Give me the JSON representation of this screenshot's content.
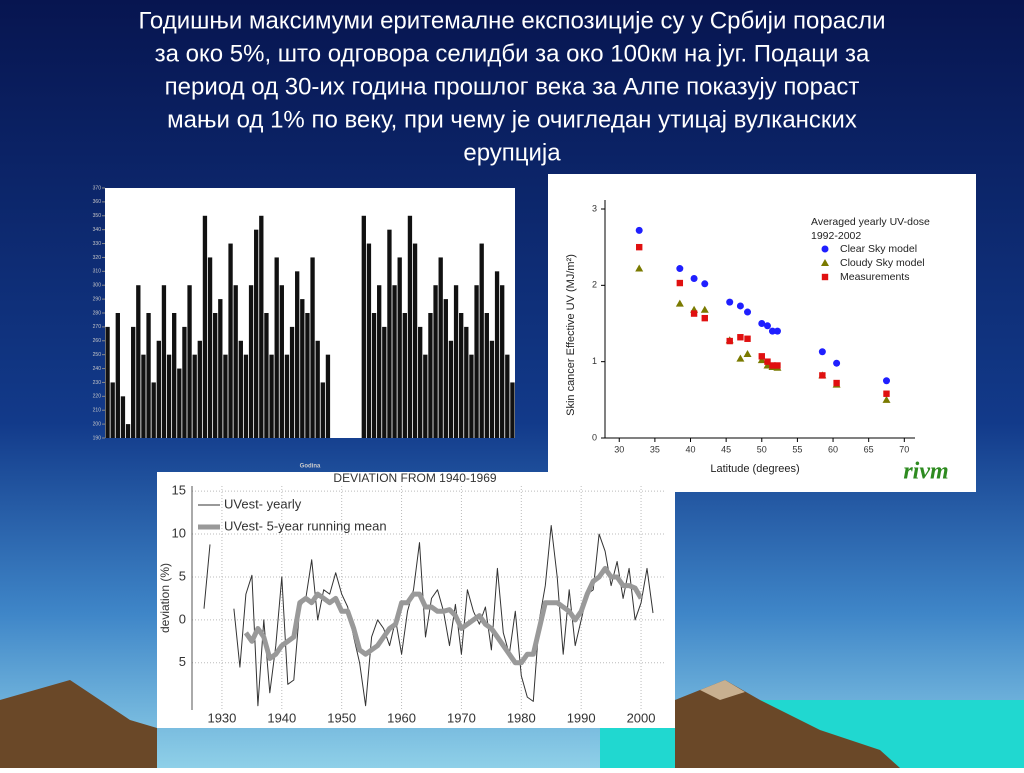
{
  "slide_title_lines": [
    "Годишњи максимуми еритемалне експозиције су у Србији порасли",
    "за око 5%, што одговора селидби за око 100км  на југ. Подаци за",
    "период од 30-их година прошлог века за Алпе показују пораст",
    "мањи од 1% по веку, при чему је очигледан утицај вулканских",
    "ерупција"
  ],
  "chart_data": [
    {
      "type": "bar",
      "xlabel": "Godina",
      "color": "#111111",
      "ylim": [
        190,
        370
      ],
      "yticks": [
        190,
        200,
        210,
        220,
        230,
        240,
        250,
        260,
        270,
        280,
        290,
        300,
        310,
        320,
        330,
        340,
        350,
        360,
        370
      ],
      "values": [
        270,
        230,
        280,
        220,
        200,
        270,
        300,
        250,
        280,
        230,
        260,
        300,
        250,
        280,
        240,
        270,
        300,
        250,
        260,
        350,
        320,
        280,
        290,
        250,
        330,
        300,
        260,
        250,
        300,
        340,
        350,
        280,
        250,
        320,
        300,
        250,
        270,
        310,
        290,
        280,
        320,
        260,
        230,
        250,
        null,
        null,
        null,
        null,
        null,
        null,
        350,
        330,
        280,
        300,
        270,
        340,
        300,
        320,
        280,
        350,
        330,
        270,
        250,
        280,
        300,
        320,
        290,
        260,
        300,
        280,
        270,
        250,
        300,
        330,
        280,
        260,
        310,
        300,
        250,
        230
      ]
    },
    {
      "type": "scatter",
      "legend_title_lines": [
        "Averaged yearly UV-dose",
        "1992-2002"
      ],
      "xlabel": "Latitude (degrees)",
      "ylabel": "Skin cancer Effective UV (MJ/m²)",
      "logo": "rivm",
      "xlim": [
        28,
        71.5
      ],
      "ylim": [
        0,
        3
      ],
      "xticks": [
        30,
        35,
        40,
        45,
        50,
        55,
        60,
        65,
        70
      ],
      "yticks": [
        0,
        1,
        2,
        3
      ],
      "series": [
        {
          "name": "Clear Sky model",
          "color": "#1f1fff",
          "marker": "circle",
          "x": [
            32.8,
            38.5,
            40.5,
            42,
            45.5,
            47,
            48,
            50,
            50.8,
            51.5,
            52.2,
            58.5,
            60.5,
            67.5
          ],
          "values": [
            2.72,
            2.22,
            2.09,
            2.02,
            1.78,
            1.73,
            1.65,
            1.5,
            1.47,
            1.4,
            1.4,
            1.13,
            0.98,
            0.75
          ]
        },
        {
          "name": "Cloudy Sky model",
          "color": "#7a7a00",
          "marker": "triangle",
          "x": [
            32.8,
            38.5,
            40.5,
            42,
            45.5,
            47,
            48,
            50,
            50.8,
            51.5,
            52.2,
            58.5,
            60.5,
            67.5
          ],
          "values": [
            2.22,
            1.76,
            1.68,
            1.68,
            1.28,
            1.04,
            1.1,
            1.02,
            0.95,
            0.93,
            0.92,
            0.82,
            0.7,
            0.5
          ]
        },
        {
          "name": "Measurements",
          "color": "#e01010",
          "marker": "square",
          "x": [
            32.8,
            38.5,
            40.5,
            42,
            45.5,
            47,
            48,
            50,
            50.8,
            51.5,
            52.2,
            58.5,
            60.5,
            67.5
          ],
          "values": [
            2.5,
            2.03,
            1.63,
            1.57,
            1.27,
            1.32,
            1.3,
            1.07,
            1.0,
            0.95,
            0.95,
            0.82,
            0.72,
            0.58
          ]
        }
      ]
    },
    {
      "type": "line",
      "title": "DEVIATION FROM 1940-1969",
      "ylabel": "deviation (%)",
      "grid": true,
      "xlim": [
        1925,
        2004
      ],
      "ylim": [
        -10.5,
        15.6
      ],
      "xticks": [
        1930,
        1940,
        1950,
        1960,
        1970,
        1980,
        1990,
        2000
      ],
      "yticks": [
        15,
        10,
        5,
        0,
        {
          "value": -5,
          "label": "5"
        }
      ],
      "series": [
        {
          "name": "UVest- yearly",
          "color": "#333333",
          "width": 1,
          "x": [
            1927,
            1928,
            1929,
            1930,
            1931,
            1932,
            1933,
            1934,
            1935,
            1936,
            1937,
            1938,
            1939,
            1940,
            1941,
            1942,
            1943,
            1944,
            1945,
            1946,
            1947,
            1948,
            1949,
            1950,
            1951,
            1952,
            1953,
            1954,
            1955,
            1956,
            1957,
            1958,
            1959,
            1960,
            1961,
            1962,
            1963,
            1964,
            1965,
            1966,
            1967,
            1968,
            1969,
            1970,
            1971,
            1972,
            1973,
            1974,
            1975,
            1976,
            1977,
            1978,
            1979,
            1980,
            1981,
            1982,
            1983,
            1984,
            1985,
            1986,
            1987,
            1988,
            1989,
            1990,
            1991,
            1992,
            1993,
            1994,
            1995,
            1996,
            1997,
            1998,
            1999,
            2000,
            2001,
            2002
          ],
          "values": [
            1.3,
            8.8,
            null,
            null,
            null,
            1.3,
            -5.5,
            3,
            5.2,
            -10,
            0,
            -8.5,
            -3,
            5,
            -7.5,
            -7,
            1.5,
            2.5,
            7,
            0,
            3.5,
            3,
            5.5,
            3,
            1.5,
            -2,
            -5,
            -10,
            -2,
            0,
            -1,
            -3,
            0,
            -4,
            1,
            3.5,
            9,
            -2,
            2.5,
            3.5,
            1,
            -3,
            1.8,
            -4,
            3.5,
            1,
            -0.5,
            1.5,
            -3.5,
            6,
            -1.5,
            -4,
            1,
            -6.5,
            -9,
            -9.5,
            0,
            4,
            11,
            5,
            -4,
            3.5,
            -3,
            0,
            3,
            3.5,
            10,
            8,
            4,
            6.8,
            2.5,
            6,
            0,
            2,
            6,
            0.8
          ]
        },
        {
          "name": "UVest- 5-year running mean",
          "color": "#999999",
          "width": 5,
          "x": [
            1934,
            1935,
            1936,
            1937,
            1938,
            1939,
            1940,
            1941,
            1942,
            1943,
            1944,
            1945,
            1946,
            1947,
            1948,
            1949,
            1950,
            1951,
            1952,
            1953,
            1954,
            1955,
            1956,
            1957,
            1958,
            1959,
            1960,
            1961,
            1962,
            1963,
            1964,
            1965,
            1966,
            1967,
            1968,
            1969,
            1970,
            1971,
            1972,
            1973,
            1974,
            1975,
            1976,
            1977,
            1978,
            1979,
            1980,
            1981,
            1982,
            1983,
            1984,
            1985,
            1986,
            1987,
            1988,
            1989,
            1990,
            1991,
            1992,
            1993,
            1994,
            1995,
            1996,
            1997,
            1998,
            1999,
            2000
          ],
          "values": [
            -1.5,
            -2.5,
            -1,
            -2,
            -4.5,
            -4,
            -3,
            -2.5,
            -2,
            2,
            2.5,
            2,
            3,
            2.5,
            2,
            2.5,
            1,
            1,
            -1,
            -3.5,
            -4,
            -3.5,
            -3,
            -2,
            -1,
            -0.5,
            2,
            2,
            3,
            3,
            1.5,
            1.5,
            1,
            1,
            1.2,
            0.5,
            -1,
            -0.5,
            0,
            0.5,
            -0.5,
            -1,
            -2,
            -3,
            -4,
            -5,
            -5,
            -4,
            -4,
            -1,
            2,
            2,
            2,
            1.5,
            1,
            0,
            1,
            3,
            4.5,
            5,
            6,
            5,
            5,
            4,
            4,
            3.7,
            2.5
          ]
        }
      ]
    }
  ]
}
